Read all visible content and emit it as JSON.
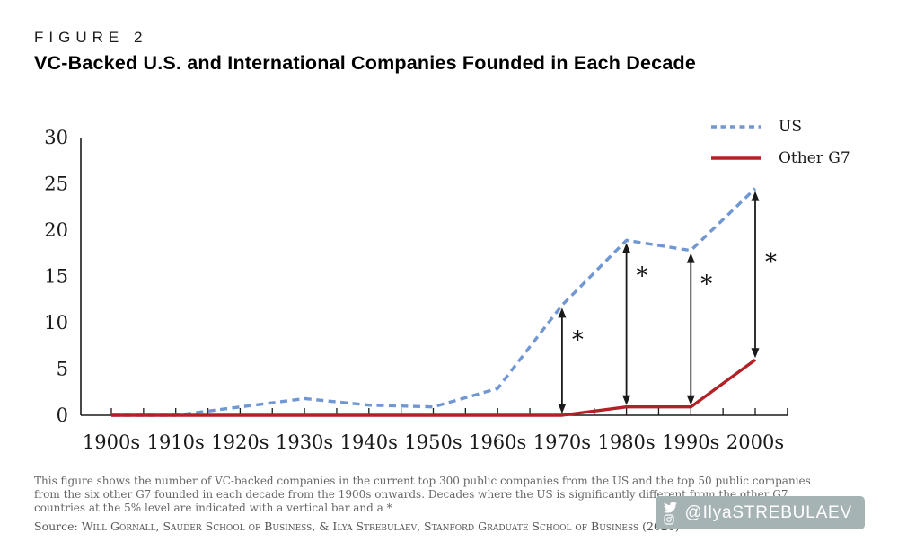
{
  "header": {
    "figure_label": "FIGURE 2",
    "title": "VC-Backed U.S. and International Companies Founded in Each Decade"
  },
  "chart_data": {
    "type": "line",
    "categories": [
      "1900s",
      "1910s",
      "1920s",
      "1930s",
      "1940s",
      "1950s",
      "1960s",
      "1970s",
      "1980s",
      "1990s",
      "2000s"
    ],
    "series": [
      {
        "name": "US",
        "color": "#7097d1",
        "line_style": "dashed",
        "values": [
          0,
          0,
          0.9,
          1.8,
          1.1,
          0.9,
          2.9,
          11.9,
          18.9,
          17.8,
          24.5
        ]
      },
      {
        "name": "Other G7",
        "color": "#b32025",
        "line_style": "solid",
        "values": [
          0,
          0,
          0,
          0,
          0,
          0,
          0,
          0,
          0.9,
          0.9,
          6
        ]
      }
    ],
    "ylim": [
      0,
      30
    ],
    "yticks": [
      0,
      5,
      10,
      15,
      20,
      25,
      30
    ],
    "grid": false,
    "legend_position": "top-right",
    "axis_color": "#1a1a1a",
    "annotations": {
      "significance_marker": "*",
      "arrows": [
        {
          "category": "1970s",
          "from_series": "US",
          "to_series": "Other G7",
          "marker_value": 8.8
        },
        {
          "category": "1980s",
          "from_series": "US",
          "to_series": "Other G7",
          "marker_value": 15.7
        },
        {
          "category": "1990s",
          "from_series": "US",
          "to_series": "Other G7",
          "marker_value": 14.8
        },
        {
          "category": "2000s",
          "from_series": "US",
          "to_series": "Other G7",
          "marker_value": 17.2
        }
      ]
    }
  },
  "footnote": {
    "text": "This figure shows the number of VC-backed companies in the current top 300 public companies from the US and the top 50 public companies from the six other G7 founded in each decade from the 1900s onwards. Decades where the US is significantly different from the other G7 countries at the 5% level are indicated with a vertical bar and a *"
  },
  "source": {
    "prefix": "Source: ",
    "text": "Will Gornall, Sauder School of Business, & Ilya Strebulaev, Stanford Graduate School of Business (2021)"
  },
  "badge": {
    "handle": "@IlyaSTREBULAEV",
    "background": "#a6b3b4",
    "icons": [
      "twitter-icon",
      "instagram-icon"
    ]
  }
}
